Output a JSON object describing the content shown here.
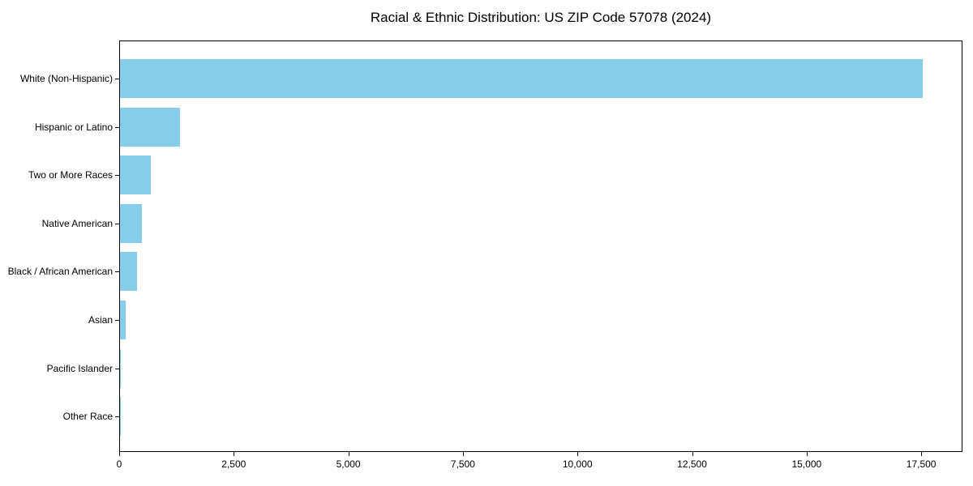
{
  "page": {
    "background": "#ffffff"
  },
  "chart_data": {
    "type": "bar",
    "orientation": "horizontal",
    "title": "Racial & Ethnic Distribution: US ZIP Code 57078 (2024)",
    "categories": [
      "White (Non-Hispanic)",
      "Hispanic or Latino",
      "Two or More Races",
      "Native American",
      "Black / African American",
      "Asian",
      "Pacific Islander",
      "Other Race"
    ],
    "values": [
      17516,
      1310,
      675,
      480,
      375,
      130,
      10,
      5
    ],
    "xlabel": "",
    "ylabel": "",
    "xlim": [
      0,
      18400
    ],
    "xticks": [
      {
        "value": 0,
        "label": "0"
      },
      {
        "value": 2500,
        "label": "2,500"
      },
      {
        "value": 5000,
        "label": "5,000"
      },
      {
        "value": 7500,
        "label": "7,500"
      },
      {
        "value": 10000,
        "label": "10,000"
      },
      {
        "value": 12500,
        "label": "12,500"
      },
      {
        "value": 15000,
        "label": "15,000"
      },
      {
        "value": 17500,
        "label": "17,500"
      }
    ],
    "bar_color": "#87CEEB",
    "spine_color": "#000000",
    "text_color": "#000000",
    "grid": false,
    "legend": "none"
  }
}
